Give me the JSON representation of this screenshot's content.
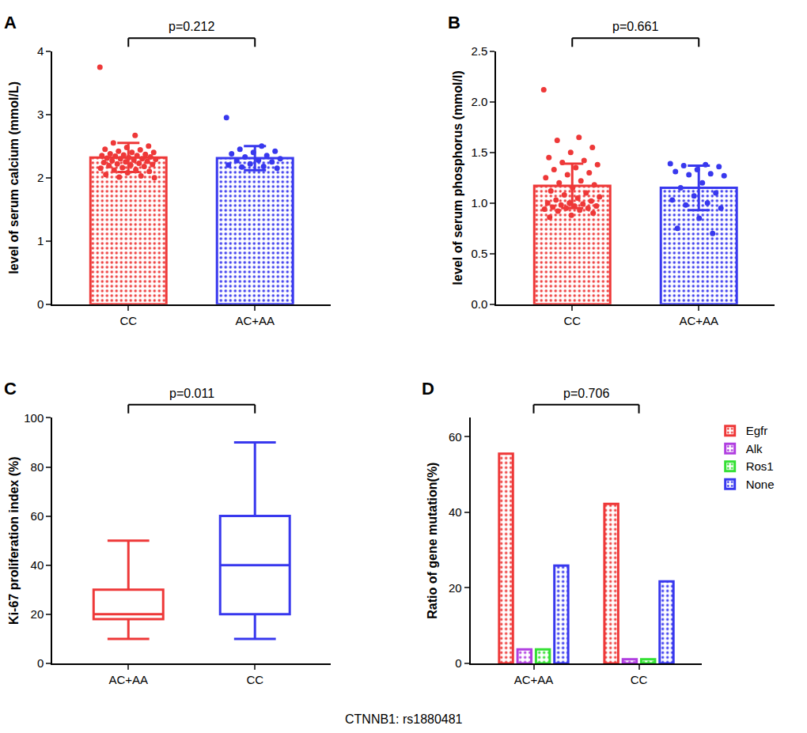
{
  "caption": "CTNNB1: rs1880481",
  "chart_data": [
    {
      "panel": "A",
      "type": "bar",
      "categories": [
        "CC",
        "AC+AA"
      ],
      "values": [
        2.32,
        2.31
      ],
      "errors": [
        0.23,
        0.19
      ],
      "points": [
        [
          3.75,
          2.67,
          2.55,
          2.5,
          2.48,
          2.45,
          2.44,
          2.42,
          2.4,
          2.4,
          2.38,
          2.37,
          2.36,
          2.35,
          2.35,
          2.34,
          2.33,
          2.32,
          2.31,
          2.3,
          2.3,
          2.29,
          2.28,
          2.27,
          2.26,
          2.25,
          2.24,
          2.23,
          2.22,
          2.21,
          2.2,
          2.19,
          2.18,
          2.16,
          2.15,
          2.13,
          2.12,
          2.1,
          2.08,
          2.05,
          2.03,
          2.01,
          2.0
        ],
        [
          2.95,
          2.5,
          2.45,
          2.42,
          2.4,
          2.38,
          2.35,
          2.33,
          2.3,
          2.28,
          2.27,
          2.25,
          2.22,
          2.2,
          2.18,
          2.17,
          2.15
        ]
      ],
      "colors": [
        "#ee3838",
        "#3838ee"
      ],
      "y_label": "level of serum calcium (mmol/L)",
      "annotations": [
        "p=0.212"
      ],
      "ylim": [
        0,
        4
      ],
      "yticks": [
        0,
        1,
        2,
        3,
        4
      ]
    },
    {
      "panel": "B",
      "type": "bar",
      "categories": [
        "CC",
        "AC+AA"
      ],
      "values": [
        1.17,
        1.15
      ],
      "errors": [
        0.22,
        0.22
      ],
      "points": [
        [
          2.12,
          1.65,
          1.62,
          1.55,
          1.5,
          1.45,
          1.42,
          1.4,
          1.38,
          1.35,
          1.33,
          1.3,
          1.28,
          1.25,
          1.22,
          1.2,
          1.18,
          1.15,
          1.12,
          1.1,
          1.08,
          1.06,
          1.05,
          1.03,
          1.02,
          1.0,
          1.0,
          0.99,
          0.98,
          0.97,
          0.97,
          0.96,
          0.95,
          0.95,
          0.94,
          0.93,
          0.92,
          0.9,
          0.88,
          0.86
        ],
        [
          1.39,
          1.38,
          1.37,
          1.36,
          1.33,
          1.31,
          1.29,
          1.28,
          1.27,
          1.2,
          1.15,
          1.1,
          1.07,
          1.03,
          1.0,
          0.98,
          0.95,
          0.85,
          0.75,
          0.7
        ]
      ],
      "colors": [
        "#ee3838",
        "#3838ee"
      ],
      "y_label": "level of serum phosphorus (mmol/l)",
      "annotations": [
        "p=0.661"
      ],
      "ylim": [
        0,
        2.5
      ],
      "yticks": [
        {
          "value": 0,
          "label": "0.0"
        },
        0.5,
        {
          "value": 1,
          "label": "1.0"
        },
        1.5,
        {
          "value": 2,
          "label": "2.0"
        },
        2.5
      ]
    },
    {
      "panel": "C",
      "type": "box",
      "categories": [
        "AC+AA",
        "CC"
      ],
      "min": [
        10,
        10
      ],
      "q1": [
        18,
        20
      ],
      "median": [
        20,
        40
      ],
      "q3": [
        30,
        60
      ],
      "max": [
        50,
        90
      ],
      "colors": [
        "#ee3838",
        "#3838ee"
      ],
      "y_label": "Ki-67 proliferation index (%)",
      "annotations": [
        "p=0.011"
      ],
      "ylim": [
        0,
        100
      ],
      "yticks": [
        0,
        20,
        40,
        60,
        80,
        100
      ]
    },
    {
      "panel": "D",
      "type": "bar",
      "categories": [
        "AC+AA",
        "CC"
      ],
      "series": [
        {
          "name": "Egfr",
          "color": "#ee3838",
          "values": [
            55.5,
            42.2
          ]
        },
        {
          "name": "Alk",
          "color": "#b03ee0",
          "values": [
            3.7,
            1.1
          ]
        },
        {
          "name": "Ros1",
          "color": "#33e033",
          "values": [
            3.7,
            1.1
          ]
        },
        {
          "name": "None",
          "color": "#3838ee",
          "values": [
            25.9,
            21.7
          ]
        }
      ],
      "y_label": "Ratio of gene mutation(%)",
      "annotations": [
        "p=0.706"
      ],
      "legend": "top right",
      "ylim": [
        0,
        65
      ],
      "yticks": [
        0,
        20,
        40,
        60
      ]
    }
  ]
}
